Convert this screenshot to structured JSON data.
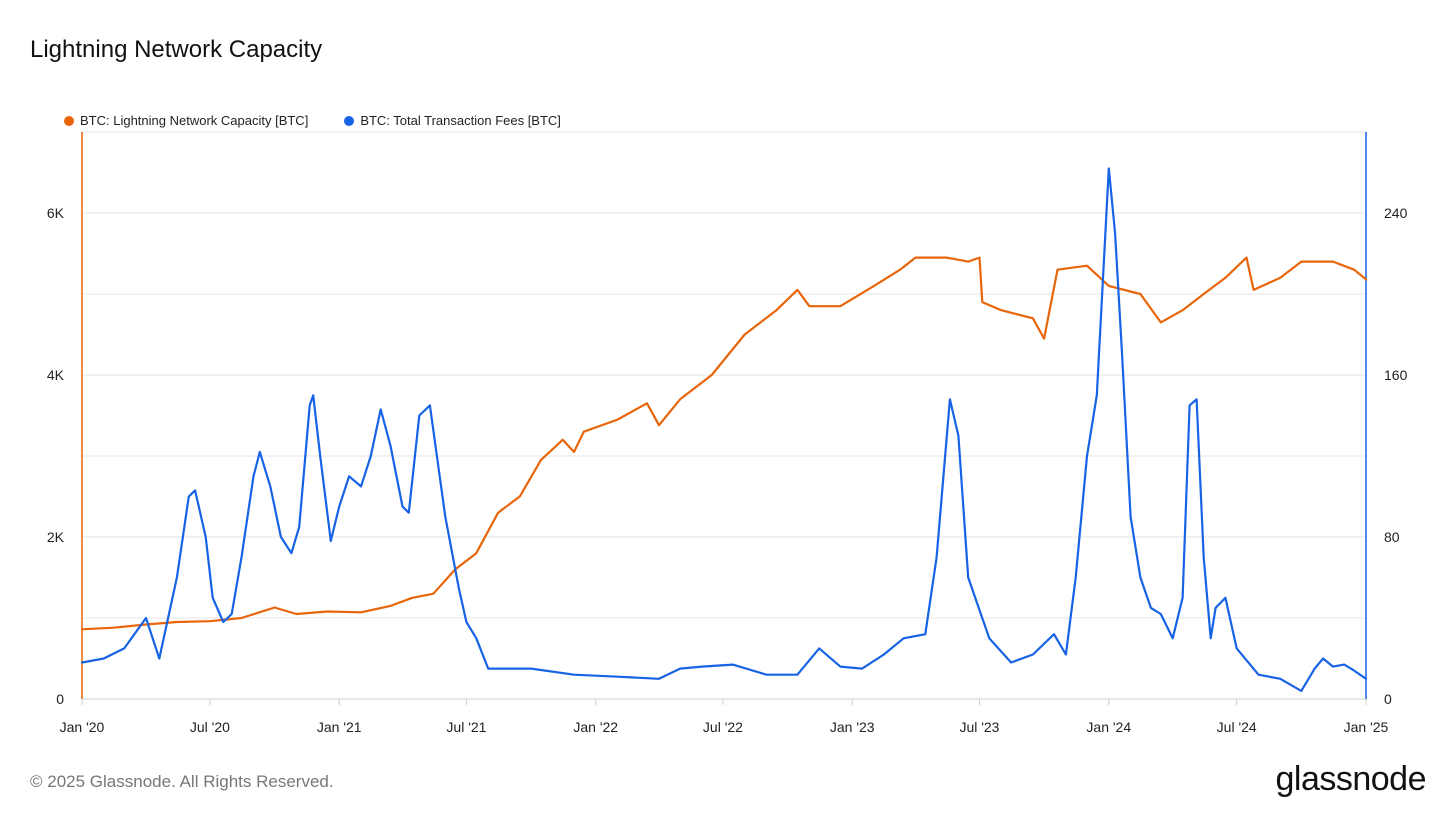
{
  "title": "Lightning Network Capacity",
  "footer": "© 2025 Glassnode. All Rights Reserved.",
  "logo": "glassnode",
  "colors": {
    "capacity": "#e8650a",
    "fees": "#1763e6",
    "grid": "#e6e6e6"
  },
  "chart_data": {
    "type": "line",
    "x_range": [
      "2020-01-01",
      "2025-01-01"
    ],
    "x_ticks": [
      "Jan '20",
      "Jul '20",
      "Jan '21",
      "Jul '21",
      "Jan '22",
      "Jul '22",
      "Jan '23",
      "Jul '23",
      "Jan '24",
      "Jul '24",
      "Jan '25"
    ],
    "y_left": {
      "ticks": [
        "0",
        "2K",
        "4K",
        "6K"
      ],
      "range": [
        0,
        7000
      ]
    },
    "y_right": {
      "ticks": [
        "0",
        "80",
        "160",
        "240"
      ],
      "range": [
        0,
        280
      ]
    },
    "grid": true,
    "legend_position": "top-left",
    "series": [
      {
        "name": "BTC: Lightning Network Capacity [BTC]",
        "axis": "left",
        "points": [
          [
            "2020-01-01",
            860
          ],
          [
            "2020-02-15",
            880
          ],
          [
            "2020-04-01",
            920
          ],
          [
            "2020-05-15",
            950
          ],
          [
            "2020-07-01",
            960
          ],
          [
            "2020-08-15",
            1000
          ],
          [
            "2020-10-01",
            1130
          ],
          [
            "2020-11-01",
            1050
          ],
          [
            "2020-12-15",
            1080
          ],
          [
            "2021-02-01",
            1070
          ],
          [
            "2021-03-15",
            1150
          ],
          [
            "2021-04-15",
            1250
          ],
          [
            "2021-05-15",
            1300
          ],
          [
            "2021-06-15",
            1600
          ],
          [
            "2021-07-15",
            1800
          ],
          [
            "2021-08-15",
            2300
          ],
          [
            "2021-09-15",
            2500
          ],
          [
            "2021-10-15",
            2950
          ],
          [
            "2021-11-15",
            3200
          ],
          [
            "2021-12-01",
            3050
          ],
          [
            "2021-12-15",
            3300
          ],
          [
            "2022-02-01",
            3450
          ],
          [
            "2022-03-15",
            3650
          ],
          [
            "2022-04-01",
            3380
          ],
          [
            "2022-05-01",
            3700
          ],
          [
            "2022-06-15",
            4000
          ],
          [
            "2022-08-01",
            4500
          ],
          [
            "2022-09-15",
            4800
          ],
          [
            "2022-10-15",
            5050
          ],
          [
            "2022-11-01",
            4850
          ],
          [
            "2022-12-15",
            4850
          ],
          [
            "2023-02-01",
            5100
          ],
          [
            "2023-03-10",
            5300
          ],
          [
            "2023-04-01",
            5450
          ],
          [
            "2023-05-15",
            5450
          ],
          [
            "2023-06-15",
            5400
          ],
          [
            "2023-07-01",
            5450
          ],
          [
            "2023-07-05",
            4900
          ],
          [
            "2023-08-01",
            4800
          ],
          [
            "2023-09-15",
            4700
          ],
          [
            "2023-10-01",
            4450
          ],
          [
            "2023-10-20",
            5300
          ],
          [
            "2023-12-01",
            5350
          ],
          [
            "2024-01-01",
            5100
          ],
          [
            "2024-02-15",
            5000
          ],
          [
            "2024-03-15",
            4650
          ],
          [
            "2024-04-15",
            4800
          ],
          [
            "2024-05-15",
            5000
          ],
          [
            "2024-06-15",
            5200
          ],
          [
            "2024-07-15",
            5450
          ],
          [
            "2024-07-25",
            5050
          ],
          [
            "2024-09-01",
            5200
          ],
          [
            "2024-10-01",
            5400
          ],
          [
            "2024-11-15",
            5400
          ],
          [
            "2024-12-15",
            5300
          ],
          [
            "2025-01-01",
            5180
          ]
        ]
      },
      {
        "name": "BTC: Total Transaction Fees [BTC]",
        "axis": "right",
        "points": [
          [
            "2020-01-01",
            18
          ],
          [
            "2020-02-01",
            20
          ],
          [
            "2020-03-01",
            25
          ],
          [
            "2020-04-01",
            40
          ],
          [
            "2020-04-20",
            20
          ],
          [
            "2020-05-15",
            60
          ],
          [
            "2020-06-01",
            100
          ],
          [
            "2020-06-10",
            103
          ],
          [
            "2020-06-25",
            80
          ],
          [
            "2020-07-05",
            50
          ],
          [
            "2020-07-20",
            38
          ],
          [
            "2020-08-01",
            42
          ],
          [
            "2020-08-15",
            70
          ],
          [
            "2020-09-01",
            110
          ],
          [
            "2020-09-10",
            122
          ],
          [
            "2020-09-25",
            105
          ],
          [
            "2020-10-10",
            80
          ],
          [
            "2020-10-25",
            72
          ],
          [
            "2020-11-05",
            85
          ],
          [
            "2020-11-20",
            145
          ],
          [
            "2020-11-25",
            150
          ],
          [
            "2020-12-05",
            120
          ],
          [
            "2020-12-20",
            78
          ],
          [
            "2021-01-01",
            95
          ],
          [
            "2021-01-15",
            110
          ],
          [
            "2021-02-01",
            105
          ],
          [
            "2021-02-15",
            120
          ],
          [
            "2021-03-01",
            143
          ],
          [
            "2021-03-15",
            125
          ],
          [
            "2021-04-01",
            95
          ],
          [
            "2021-04-10",
            92
          ],
          [
            "2021-04-25",
            140
          ],
          [
            "2021-05-10",
            145
          ],
          [
            "2021-06-01",
            90
          ],
          [
            "2021-06-20",
            55
          ],
          [
            "2021-07-01",
            38
          ],
          [
            "2021-07-15",
            30
          ],
          [
            "2021-08-01",
            15
          ],
          [
            "2021-10-01",
            15
          ],
          [
            "2021-12-01",
            12
          ],
          [
            "2022-02-01",
            11
          ],
          [
            "2022-04-01",
            10
          ],
          [
            "2022-05-01",
            15
          ],
          [
            "2022-06-01",
            16
          ],
          [
            "2022-07-15",
            17
          ],
          [
            "2022-09-01",
            12
          ],
          [
            "2022-10-15",
            12
          ],
          [
            "2022-11-15",
            25
          ],
          [
            "2022-12-15",
            16
          ],
          [
            "2023-01-15",
            15
          ],
          [
            "2023-02-15",
            22
          ],
          [
            "2023-03-15",
            30
          ],
          [
            "2023-04-15",
            32
          ],
          [
            "2023-05-01",
            70
          ],
          [
            "2023-05-20",
            148
          ],
          [
            "2023-06-01",
            130
          ],
          [
            "2023-06-15",
            60
          ],
          [
            "2023-07-15",
            30
          ],
          [
            "2023-08-15",
            18
          ],
          [
            "2023-09-15",
            22
          ],
          [
            "2023-10-15",
            32
          ],
          [
            "2023-11-01",
            22
          ],
          [
            "2023-11-15",
            60
          ],
          [
            "2023-12-01",
            120
          ],
          [
            "2023-12-15",
            150
          ],
          [
            "2024-01-01",
            262
          ],
          [
            "2024-01-10",
            230
          ],
          [
            "2024-01-20",
            170
          ],
          [
            "2024-02-01",
            90
          ],
          [
            "2024-02-15",
            60
          ],
          [
            "2024-03-01",
            45
          ],
          [
            "2024-03-15",
            42
          ],
          [
            "2024-04-01",
            30
          ],
          [
            "2024-04-15",
            50
          ],
          [
            "2024-04-25",
            145
          ],
          [
            "2024-05-05",
            148
          ],
          [
            "2024-05-15",
            70
          ],
          [
            "2024-05-25",
            30
          ],
          [
            "2024-06-01",
            45
          ],
          [
            "2024-06-15",
            50
          ],
          [
            "2024-07-01",
            25
          ],
          [
            "2024-08-01",
            12
          ],
          [
            "2024-09-01",
            10
          ],
          [
            "2024-10-01",
            4
          ],
          [
            "2024-10-20",
            15
          ],
          [
            "2024-11-01",
            20
          ],
          [
            "2024-11-15",
            16
          ],
          [
            "2024-12-01",
            17
          ],
          [
            "2024-12-15",
            14
          ],
          [
            "2025-01-01",
            10
          ]
        ]
      }
    ]
  }
}
